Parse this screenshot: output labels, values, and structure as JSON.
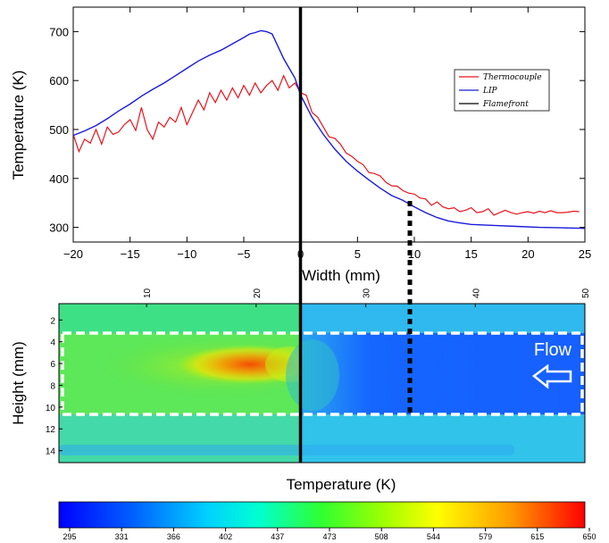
{
  "chart_data": [
    {
      "type": "line",
      "xlabel": "Width (mm)",
      "ylabel": "Temperature (K)",
      "xlim": [
        -20,
        25
      ],
      "ylim": [
        270,
        750
      ],
      "xticks": [
        "−20",
        "−15",
        "−10",
        "−5",
        "0",
        "5",
        "10",
        "15",
        "20",
        "25"
      ],
      "yticks": [
        "300",
        "400",
        "500",
        "600",
        "700"
      ],
      "legend_position": "right",
      "series": [
        {
          "name": "Thermocouple",
          "color": "#e8141e",
          "x": [
            -20,
            -19.5,
            -19,
            -18.5,
            -18,
            -17.5,
            -17,
            -16.5,
            -16,
            -15.5,
            -15,
            -14.5,
            -14,
            -13.5,
            -13,
            -12.5,
            -12,
            -11.5,
            -11,
            -10.5,
            -10,
            -9.5,
            -9,
            -8.5,
            -8,
            -7.5,
            -7,
            -6.5,
            -6,
            -5.5,
            -5,
            -4.5,
            -4,
            -3.5,
            -3,
            -2.5,
            -2,
            -1.5,
            -1,
            -0.5,
            0,
            0.5,
            1,
            1.5,
            2,
            2.5,
            3,
            3.5,
            4,
            4.5,
            5,
            5.5,
            6,
            6.5,
            7,
            7.5,
            8,
            8.5,
            9,
            9.5,
            10,
            10.5,
            11,
            11.5,
            12,
            12.5,
            13,
            13.5,
            14,
            14.5,
            15,
            15.5,
            16,
            16.5,
            17,
            17.5,
            18,
            18.5,
            19,
            19.5,
            20,
            20.5,
            21,
            21.5,
            22,
            22.5,
            23,
            23.5,
            24,
            24.5
          ],
          "y": [
            490,
            455,
            480,
            472,
            500,
            470,
            505,
            490,
            495,
            510,
            520,
            498,
            545,
            500,
            480,
            515,
            505,
            525,
            515,
            545,
            510,
            535,
            560,
            540,
            575,
            555,
            580,
            560,
            585,
            565,
            590,
            570,
            595,
            575,
            590,
            600,
            580,
            610,
            585,
            595,
            575,
            570,
            535,
            525,
            505,
            485,
            482,
            470,
            452,
            445,
            435,
            428,
            412,
            410,
            405,
            392,
            385,
            384,
            375,
            370,
            368,
            360,
            358,
            345,
            352,
            342,
            338,
            340,
            332,
            335,
            340,
            330,
            332,
            338,
            325,
            330,
            335,
            330,
            327,
            330,
            332,
            329,
            333,
            330,
            334,
            330,
            330,
            331,
            333,
            332
          ]
        },
        {
          "name": "LIP",
          "color": "#1a1adc",
          "x": [
            -20,
            -19,
            -18,
            -17,
            -16,
            -15,
            -14,
            -13,
            -12,
            -11,
            -10,
            -9,
            -8,
            -7,
            -6,
            -5,
            -4.5,
            -4,
            -3.5,
            -3,
            -2.5,
            -2,
            -1.5,
            -1,
            -0.5,
            0,
            1,
            2,
            3,
            4,
            5,
            6,
            7,
            8,
            9,
            10,
            11,
            12,
            13,
            14,
            15,
            17,
            19,
            21,
            23,
            25
          ],
          "y": [
            488,
            497,
            508,
            522,
            538,
            552,
            568,
            582,
            595,
            610,
            625,
            640,
            652,
            662,
            675,
            688,
            695,
            698,
            702,
            700,
            695,
            670,
            645,
            625,
            605,
            570,
            525,
            490,
            460,
            435,
            415,
            397,
            380,
            365,
            355,
            342,
            330,
            320,
            313,
            309,
            306,
            304,
            302,
            300,
            299,
            298
          ]
        },
        {
          "name": "Flamefront",
          "color": "#000000",
          "x": [
            0,
            0
          ],
          "y": [
            270,
            750
          ]
        }
      ],
      "legend": [
        "Thermocouple",
        "LIP",
        "Flamefront"
      ]
    },
    {
      "type": "heatmap",
      "xlabel": "Temperature (K)",
      "ylabel": "Height (mm)",
      "xticks": [
        "10",
        "20",
        "30",
        "40",
        "50"
      ],
      "yticks": [
        "2",
        "4",
        "6",
        "8",
        "10",
        "12",
        "14"
      ],
      "annotation": "Flow",
      "colorbar_ticks": [
        "295",
        "331",
        "366",
        "402",
        "437",
        "473",
        "508",
        "544",
        "579",
        "615",
        "650"
      ],
      "colorbar_range": [
        295,
        650
      ],
      "colors": [
        "#0000ff",
        "#00aaff",
        "#00ffff",
        "#00ff66",
        "#55ff00",
        "#ffff00",
        "#ffaa00",
        "#ff0000"
      ]
    }
  ]
}
